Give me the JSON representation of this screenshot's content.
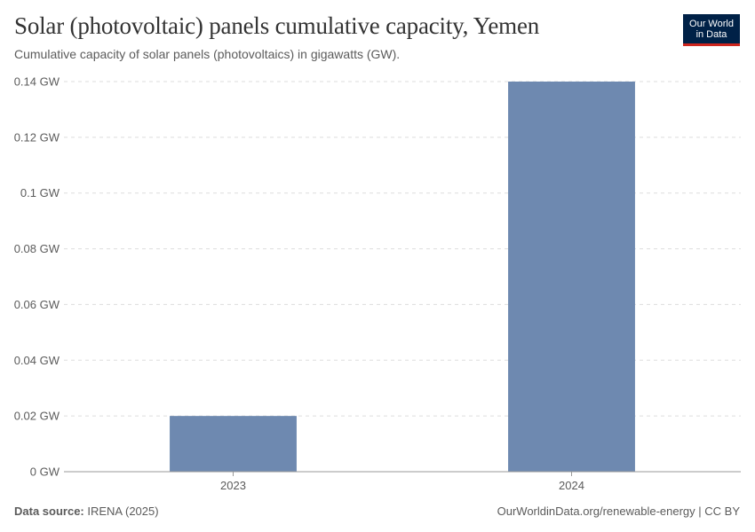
{
  "header": {
    "title": "Solar (photovoltaic) panels cumulative capacity, Yemen",
    "subtitle": "Cumulative capacity of solar panels (photovoltaics) in gigawatts (GW).",
    "logo_line1": "Our World",
    "logo_line2": "in Data"
  },
  "footer": {
    "source_label": "Data source:",
    "source_value": "IRENA (2025)",
    "link": "OurWorldinData.org/renewable-energy | CC BY"
  },
  "colors": {
    "bar": "#6e89b0",
    "grid": "#dddddd",
    "axis": "#999999"
  },
  "chart_data": {
    "type": "bar",
    "title": "Solar (photovoltaic) panels cumulative capacity, Yemen",
    "subtitle": "Cumulative capacity of solar panels (photovoltaics) in gigawatts (GW).",
    "categories": [
      "2023",
      "2024"
    ],
    "values": [
      0.02,
      0.14
    ],
    "unit": "GW",
    "ylim": [
      0,
      0.14
    ],
    "yticks": [
      0,
      0.02,
      0.04,
      0.06,
      0.08,
      0.1,
      0.12,
      0.14
    ],
    "ytick_labels": [
      "0 GW",
      "0.02 GW",
      "0.04 GW",
      "0.06 GW",
      "0.08 GW",
      "0.1 GW",
      "0.12 GW",
      "0.14 GW"
    ],
    "xlabel": "",
    "ylabel": "",
    "grid": true
  }
}
